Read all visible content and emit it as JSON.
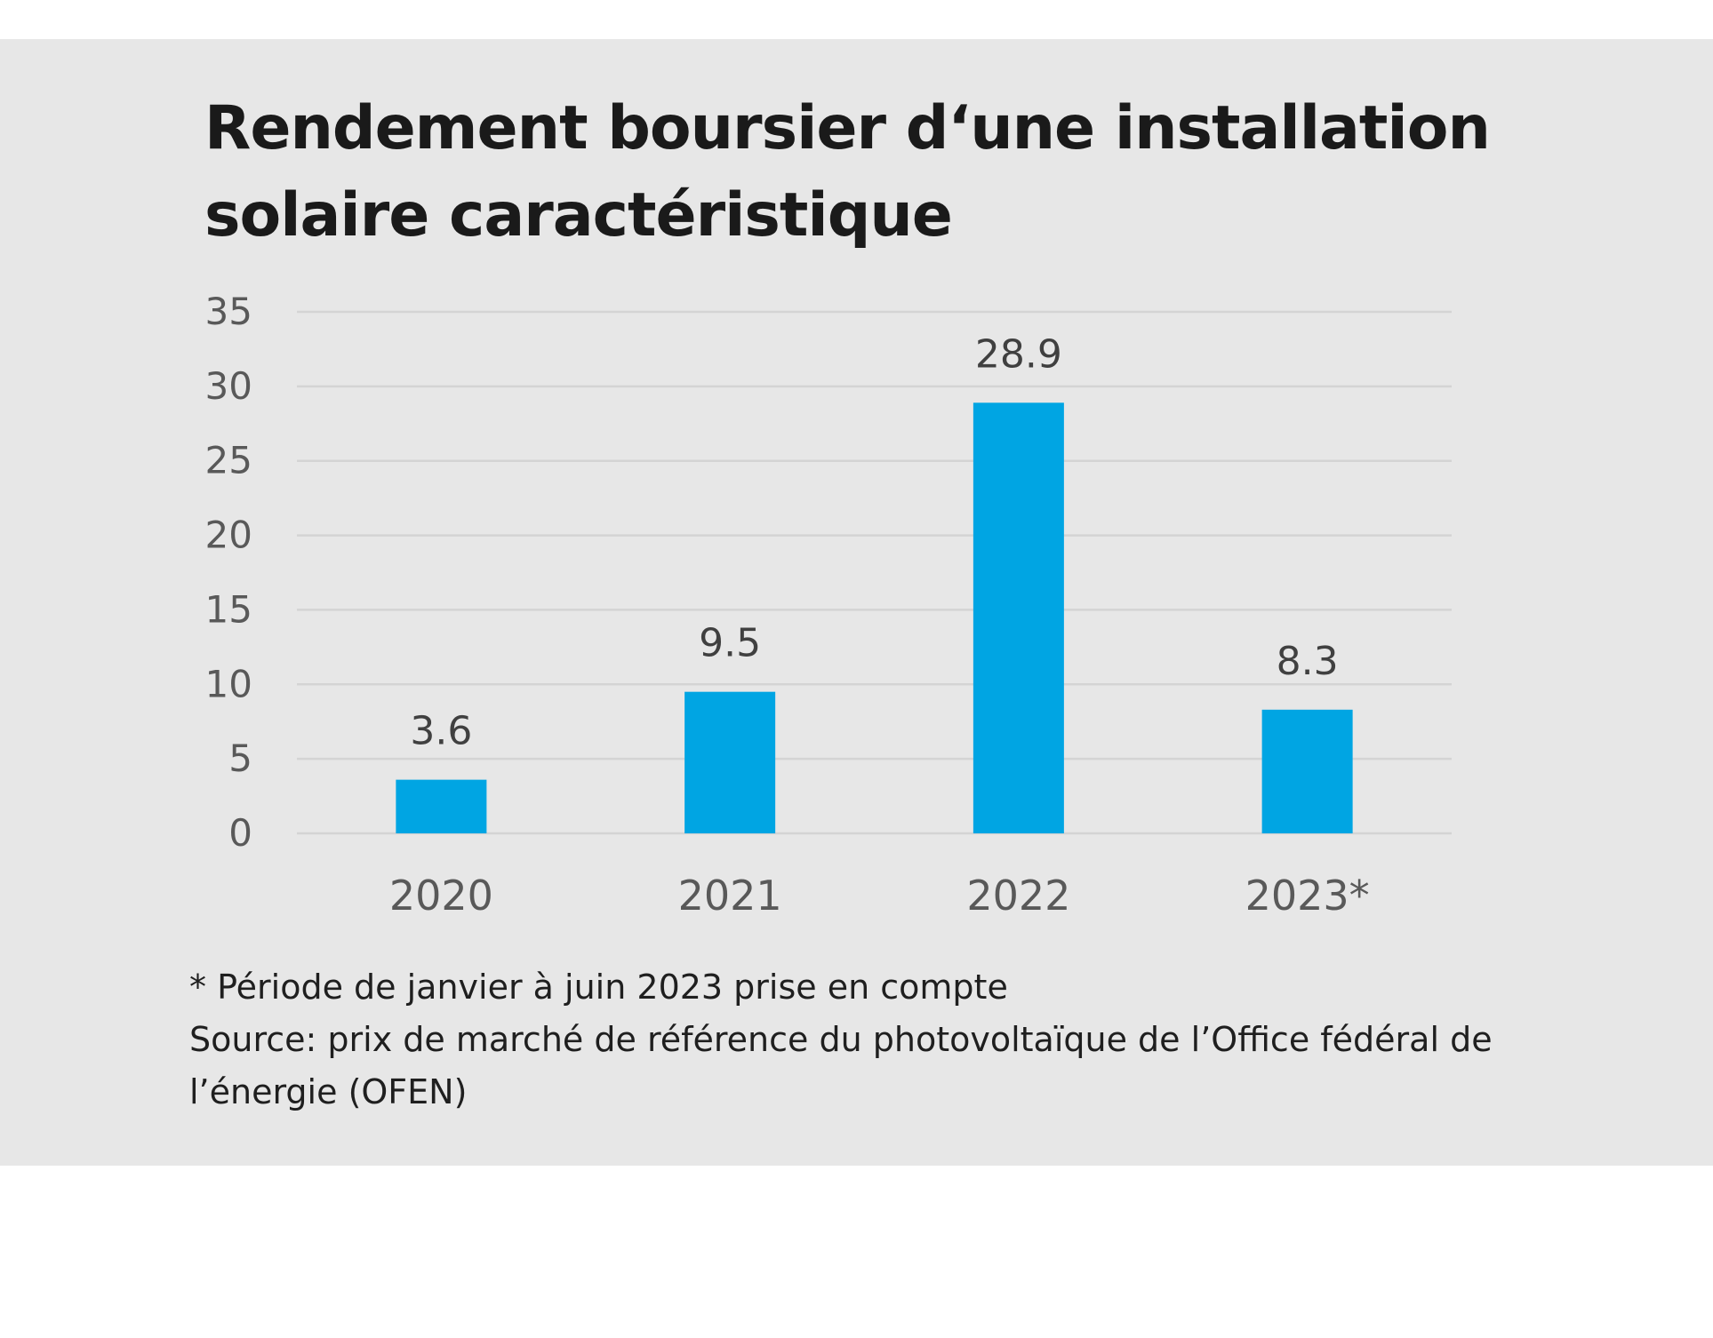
{
  "page": {
    "background": "#ffffff",
    "panel_background": "#e7e7e7"
  },
  "header": {
    "title_line1": "Rendement boursier d‘une installation",
    "title_line2": "solaire caractéristique"
  },
  "chart_data": {
    "type": "bar",
    "title": "Rendement boursier d‘une installation solaire caractéristique",
    "categories": [
      "2020",
      "2021",
      "2022",
      "2023*"
    ],
    "values": [
      3.6,
      9.5,
      28.9,
      8.3
    ],
    "data_labels": [
      "3.6",
      "9.5",
      "28.9",
      "8.3"
    ],
    "xlabel": "",
    "ylabel": "",
    "ylim": [
      0,
      35
    ],
    "yticks": [
      "0",
      "5",
      "10",
      "15",
      "20",
      "25",
      "30",
      "35"
    ],
    "grid": true,
    "legend": "none",
    "bar_color": "#00a5e3",
    "gridline_color": "#d4d4d4",
    "text_color": "#595959",
    "label_color": "#404040"
  },
  "footnotes": {
    "note": "* Période de janvier à juin 2023 prise en compte",
    "source_line1": "Source: prix de marché de référence du photovoltaïque de l’Office fédéral de",
    "source_line2": "l’énergie (OFEN)"
  }
}
